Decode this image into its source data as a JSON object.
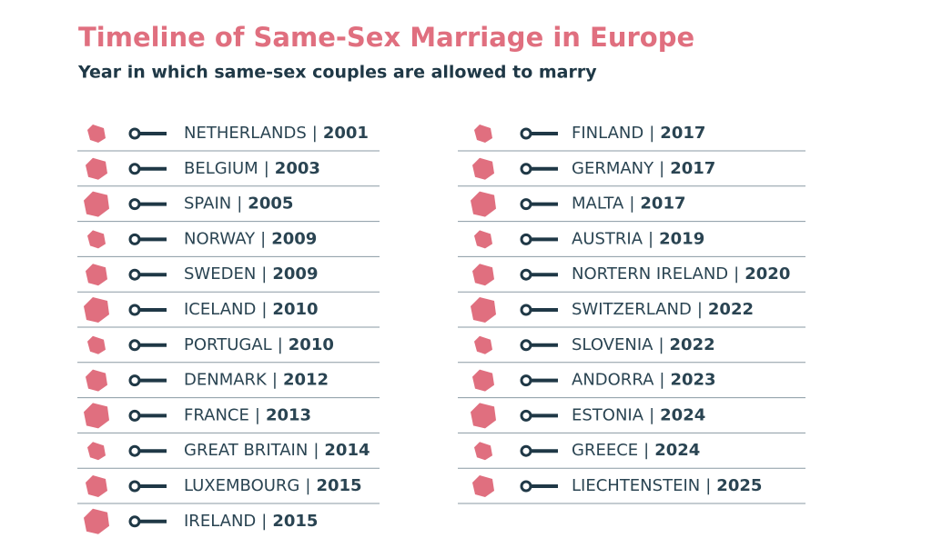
{
  "header": {
    "title": "Timeline of Same-Sex Marriage in Europe",
    "subtitle": "Year in which same-sex couples are allowed to marry"
  },
  "separator": "|",
  "columns": [
    [
      {
        "country": "NETHERLANDS",
        "year": 2001
      },
      {
        "country": "BELGIUM",
        "year": 2003
      },
      {
        "country": "SPAIN",
        "year": 2005
      },
      {
        "country": "NORWAY",
        "year": 2009
      },
      {
        "country": "SWEDEN",
        "year": 2009
      },
      {
        "country": "ICELAND",
        "year": 2010
      },
      {
        "country": "PORTUGAL",
        "year": 2010
      },
      {
        "country": "DENMARK",
        "year": 2012
      },
      {
        "country": "FRANCE",
        "year": 2013
      },
      {
        "country": "GREAT BRITAIN",
        "year": 2014
      },
      {
        "country": "LUXEMBOURG",
        "year": 2015
      },
      {
        "country": "IRELAND",
        "year": 2015
      }
    ],
    [
      {
        "country": "FINLAND",
        "year": 2017
      },
      {
        "country": "GERMANY",
        "year": 2017
      },
      {
        "country": "MALTA",
        "year": 2017
      },
      {
        "country": "AUSTRIA",
        "year": 2019
      },
      {
        "country": "NORTERN IRELAND",
        "year": 2020
      },
      {
        "country": "SWITZERLAND",
        "year": 2022
      },
      {
        "country": "SLOVENIA",
        "year": 2022
      },
      {
        "country": "ANDORRA",
        "year": 2023
      },
      {
        "country": "ESTONIA",
        "year": 2024
      },
      {
        "country": "GREECE",
        "year": 2024
      },
      {
        "country": "LIECHTENSTEIN",
        "year": 2025
      }
    ]
  ]
}
